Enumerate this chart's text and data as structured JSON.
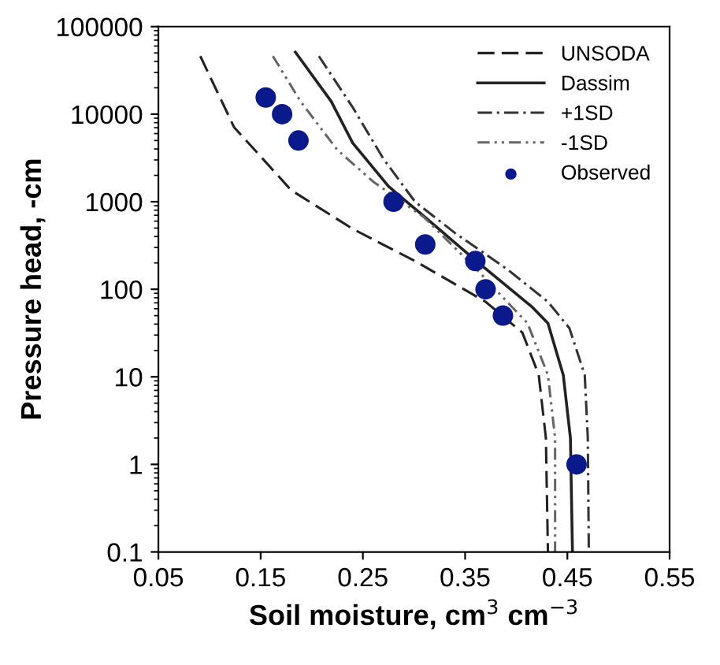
{
  "chart_data": {
    "type": "line",
    "xlabel": "Soil moisture, cm$^{3}$ cm$^{−3}$",
    "ylabel": "Pressure head, -cm",
    "log": "y",
    "xlim": [
      0.05,
      0.55
    ],
    "ylim": [
      0.1,
      100000
    ],
    "xticks": [
      0.05,
      0.15,
      0.25,
      0.35,
      0.45,
      0.55
    ],
    "yticks": [
      0.1,
      1,
      10,
      100,
      1000,
      10000,
      100000
    ],
    "grid": false,
    "legend": "top right",
    "series": [
      {
        "name": "UNSODA",
        "line_style": "dashed",
        "color": "#222222",
        "x": [
          0.091,
          0.124,
          0.18,
          0.24,
          0.301,
          0.37,
          0.406,
          0.422,
          0.429,
          0.431
        ],
        "values": [
          46000,
          7100,
          1350,
          490,
          210,
          72,
          32,
          10.5,
          2.0,
          0.1
        ]
      },
      {
        "name": "Dassim",
        "line_style": "solid",
        "color": "#222222",
        "x": [
          0.184,
          0.219,
          0.24,
          0.275,
          0.316,
          0.361,
          0.416,
          0.431,
          0.446,
          0.453,
          0.455
        ],
        "values": [
          51000,
          14000,
          4700,
          1500,
          590,
          210,
          62,
          41,
          10.5,
          2.0,
          0.1
        ]
      },
      {
        "name": "+1SD",
        "line_style": "dashdot",
        "color": "#333333",
        "x": [
          0.207,
          0.24,
          0.27,
          0.301,
          0.34,
          0.391,
          0.431,
          0.452,
          0.467,
          0.47,
          0.471
        ],
        "values": [
          46000,
          12000,
          3100,
          1000,
          440,
          170,
          72,
          36,
          10.5,
          2.0,
          0.1
        ]
      },
      {
        "name": "-1SD",
        "line_style": "dashdotdot",
        "color": "#666666",
        "x": [
          0.162,
          0.189,
          0.225,
          0.26,
          0.31,
          0.361,
          0.391,
          0.411,
          0.431,
          0.438,
          0.438
        ],
        "values": [
          46000,
          14000,
          3900,
          1700,
          660,
          170,
          72,
          41,
          10.5,
          2.0,
          0.1
        ]
      },
      {
        "name": "Observed",
        "type": "scatter",
        "marker": "circle",
        "color": "#0a1a8c",
        "x": [
          0.155,
          0.171,
          0.187,
          0.28,
          0.311,
          0.36,
          0.37,
          0.387,
          0.459
        ],
        "values": [
          15500,
          10000,
          5000,
          1000,
          325,
          210,
          100,
          50,
          1
        ]
      }
    ]
  }
}
